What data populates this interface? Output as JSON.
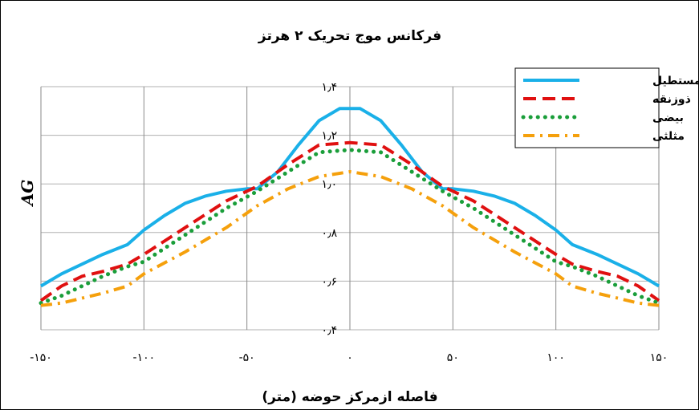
{
  "chart_data": {
    "type": "line",
    "title": "فرکانس موج تحریک ۲ هرتز",
    "xlabel": "فاصله ازمرکز حوضه (متر)",
    "ylabel": "AG",
    "xlim": [
      -150,
      150
    ],
    "ylim": [
      0.4,
      1.4
    ],
    "x_ticks": [
      {
        "value": -150,
        "label": "-۱۵۰"
      },
      {
        "value": -100,
        "label": "-۱۰۰"
      },
      {
        "value": -50,
        "label": "-۵۰"
      },
      {
        "value": 0,
        "label": "۰"
      },
      {
        "value": 50,
        "label": "۵۰"
      },
      {
        "value": 100,
        "label": "۱۰۰"
      },
      {
        "value": 150,
        "label": "۱۵۰"
      }
    ],
    "y_ticks": [
      {
        "value": 0.4,
        "label": "۰٫۴"
      },
      {
        "value": 0.6,
        "label": "۰٫۶"
      },
      {
        "value": 0.8,
        "label": "۰٫۸"
      },
      {
        "value": 1.0,
        "label": "۱٫۰"
      },
      {
        "value": 1.2,
        "label": "۱٫۲"
      },
      {
        "value": 1.4,
        "label": "۱٫۴"
      }
    ],
    "grid": true,
    "legend_position": "top-right",
    "series": [
      {
        "name": "مستطیل",
        "color": "#1ab0e8",
        "style": "solid",
        "points": [
          [
            -150,
            0.58
          ],
          [
            -140,
            0.63
          ],
          [
            -130,
            0.67
          ],
          [
            -120,
            0.71
          ],
          [
            -108,
            0.75
          ],
          [
            -100,
            0.81
          ],
          [
            -90,
            0.87
          ],
          [
            -80,
            0.92
          ],
          [
            -70,
            0.95
          ],
          [
            -60,
            0.97
          ],
          [
            -50,
            0.98
          ],
          [
            -45,
            0.98
          ],
          [
            -35,
            1.05
          ],
          [
            -25,
            1.16
          ],
          [
            -15,
            1.26
          ],
          [
            -5,
            1.31
          ],
          [
            0,
            1.31
          ],
          [
            5,
            1.31
          ],
          [
            15,
            1.26
          ],
          [
            25,
            1.16
          ],
          [
            35,
            1.05
          ],
          [
            45,
            0.98
          ],
          [
            50,
            0.98
          ],
          [
            60,
            0.97
          ],
          [
            70,
            0.95
          ],
          [
            80,
            0.92
          ],
          [
            90,
            0.87
          ],
          [
            100,
            0.81
          ],
          [
            108,
            0.75
          ],
          [
            120,
            0.71
          ],
          [
            130,
            0.67
          ],
          [
            140,
            0.63
          ],
          [
            150,
            0.58
          ]
        ]
      },
      {
        "name": "ذوزنقه",
        "color": "#e01010",
        "style": "dashed",
        "points": [
          [
            -150,
            0.52
          ],
          [
            -140,
            0.58
          ],
          [
            -130,
            0.62
          ],
          [
            -120,
            0.64
          ],
          [
            -108,
            0.67
          ],
          [
            -100,
            0.71
          ],
          [
            -80,
            0.82
          ],
          [
            -60,
            0.93
          ],
          [
            -45,
            0.99
          ],
          [
            -30,
            1.08
          ],
          [
            -15,
            1.16
          ],
          [
            0,
            1.17
          ],
          [
            15,
            1.16
          ],
          [
            30,
            1.08
          ],
          [
            45,
            0.99
          ],
          [
            60,
            0.93
          ],
          [
            80,
            0.82
          ],
          [
            100,
            0.71
          ],
          [
            108,
            0.67
          ],
          [
            120,
            0.64
          ],
          [
            130,
            0.62
          ],
          [
            140,
            0.58
          ],
          [
            150,
            0.52
          ]
        ]
      },
      {
        "name": "بیضی",
        "color": "#1a9e3a",
        "style": "dotted",
        "points": [
          [
            -150,
            0.51
          ],
          [
            -140,
            0.54
          ],
          [
            -130,
            0.58
          ],
          [
            -120,
            0.62
          ],
          [
            -108,
            0.66
          ],
          [
            -100,
            0.68
          ],
          [
            -80,
            0.79
          ],
          [
            -60,
            0.9
          ],
          [
            -45,
            0.97
          ],
          [
            -30,
            1.05
          ],
          [
            -15,
            1.13
          ],
          [
            0,
            1.14
          ],
          [
            15,
            1.13
          ],
          [
            30,
            1.05
          ],
          [
            45,
            0.97
          ],
          [
            60,
            0.9
          ],
          [
            80,
            0.79
          ],
          [
            100,
            0.68
          ],
          [
            108,
            0.66
          ],
          [
            120,
            0.62
          ],
          [
            130,
            0.58
          ],
          [
            140,
            0.54
          ],
          [
            150,
            0.51
          ]
        ]
      },
      {
        "name": "مثلثی",
        "color": "#f5a00c",
        "style": "dashdot",
        "points": [
          [
            -150,
            0.5
          ],
          [
            -140,
            0.51
          ],
          [
            -130,
            0.53
          ],
          [
            -120,
            0.55
          ],
          [
            -108,
            0.58
          ],
          [
            -100,
            0.63
          ],
          [
            -80,
            0.72
          ],
          [
            -60,
            0.82
          ],
          [
            -45,
            0.91
          ],
          [
            -30,
            0.98
          ],
          [
            -15,
            1.03
          ],
          [
            0,
            1.05
          ],
          [
            15,
            1.03
          ],
          [
            30,
            0.98
          ],
          [
            45,
            0.91
          ],
          [
            60,
            0.82
          ],
          [
            80,
            0.72
          ],
          [
            100,
            0.63
          ],
          [
            108,
            0.58
          ],
          [
            120,
            0.55
          ],
          [
            130,
            0.53
          ],
          [
            140,
            0.51
          ],
          [
            150,
            0.5
          ]
        ]
      }
    ]
  }
}
